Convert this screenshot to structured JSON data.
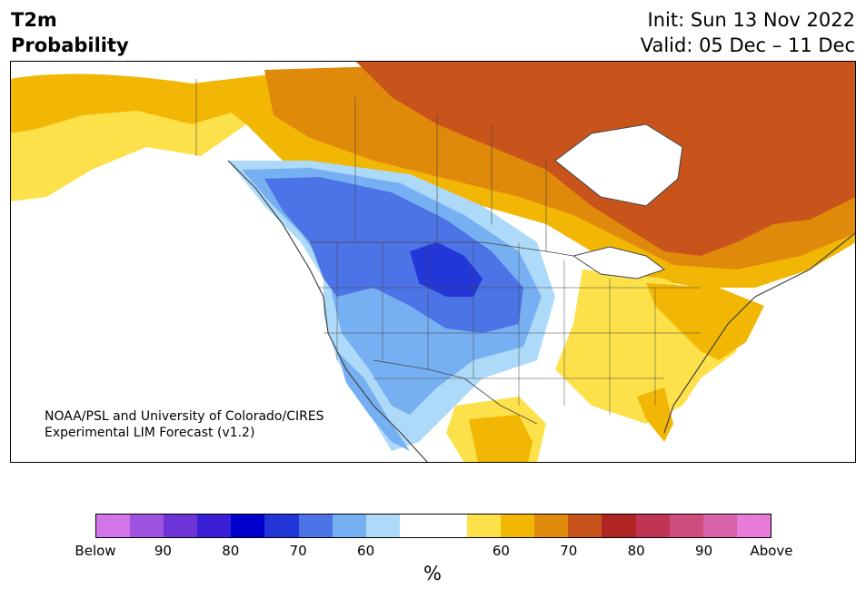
{
  "title": {
    "variable": "T2m",
    "subtitle": "Probability",
    "init": "Init: Sun 13 Nov 2022",
    "valid": "Valid: 05 Dec – 11 Dec"
  },
  "credit": {
    "line1": "NOAA/PSL and University of Colorado/CIRES",
    "line2": "Experimental LIM Forecast (v1.2)"
  },
  "colors": {
    "below": [
      "#d275e8",
      "#9f53e0",
      "#6d35d8",
      "#3a1fd6",
      "#0000cc",
      "#2336d8",
      "#4d74e6",
      "#77b0f2",
      "#aedaf9"
    ],
    "neutral": "#ffffff",
    "above": [
      "#fde14a",
      "#f2b705",
      "#e08a0b",
      "#c9541b",
      "#b02424",
      "#c23456",
      "#d04e7e",
      "#d863aa",
      "#e87ad8"
    ],
    "land_neutral": "#ffffff",
    "water": "#ffffff",
    "border": "#444444"
  },
  "colorbar": {
    "tick_labels": [
      "Below",
      "90",
      "80",
      "70",
      "60",
      "60",
      "70",
      "80",
      "90",
      "Above"
    ],
    "unit": "%"
  },
  "map_regions": [
    {
      "name": "canada-north-above-70",
      "category": "above-70"
    },
    {
      "name": "alaska-above-60",
      "category": "above-60"
    },
    {
      "name": "northwest-us-below-70",
      "category": "below-70"
    },
    {
      "name": "northern-plains-below-80",
      "category": "below-80"
    },
    {
      "name": "southeast-us-above-60",
      "category": "above-60"
    },
    {
      "name": "quebec-above-70",
      "category": "above-70"
    }
  ]
}
